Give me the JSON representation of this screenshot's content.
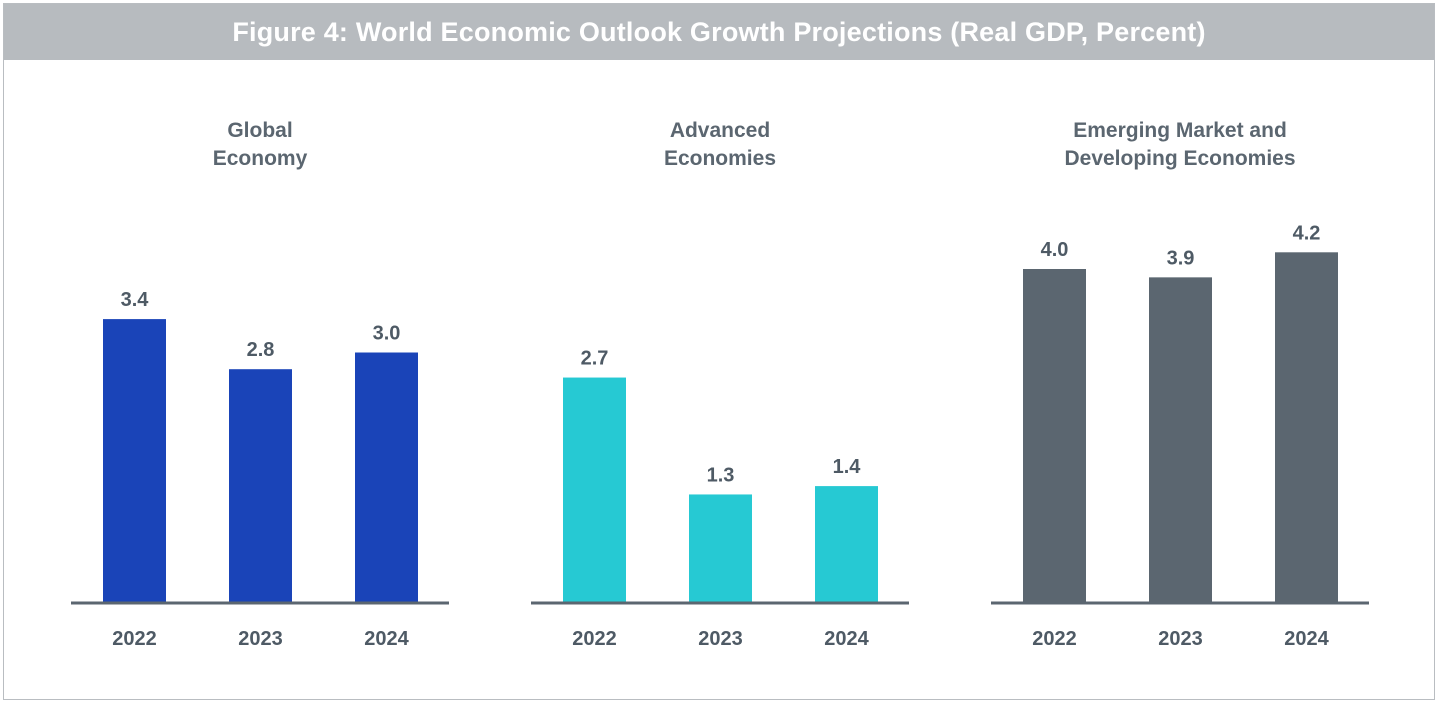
{
  "title": "Figure 4: World Economic Outlook Growth Projections (Real GDP, Percent)",
  "chart_data": [
    {
      "type": "bar",
      "title": [
        "Global",
        "Economy"
      ],
      "categories": [
        "2022",
        "2023",
        "2024"
      ],
      "values": [
        3.4,
        2.8,
        3.0
      ],
      "labels": [
        "3.4",
        "2.8",
        "3.0"
      ],
      "color": "#1a44b8",
      "xlabel": "",
      "ylabel": "",
      "ylim": [
        0,
        4.4
      ]
    },
    {
      "type": "bar",
      "title": [
        "Advanced",
        "Economies"
      ],
      "categories": [
        "2022",
        "2023",
        "2024"
      ],
      "values": [
        2.7,
        1.3,
        1.4
      ],
      "labels": [
        "2.7",
        "1.3",
        "1.4"
      ],
      "color": "#26c9d3",
      "xlabel": "",
      "ylabel": "",
      "ylim": [
        0,
        4.4
      ]
    },
    {
      "type": "bar",
      "title": [
        "Emerging Market and",
        "Developing Economies"
      ],
      "categories": [
        "2022",
        "2023",
        "2024"
      ],
      "values": [
        4.0,
        3.9,
        4.2
      ],
      "labels": [
        "4.0",
        "3.9",
        "4.2"
      ],
      "color": "#5b6670",
      "xlabel": "",
      "ylabel": "",
      "ylim": [
        0,
        4.4
      ]
    }
  ],
  "axis_color": "#5b6670"
}
